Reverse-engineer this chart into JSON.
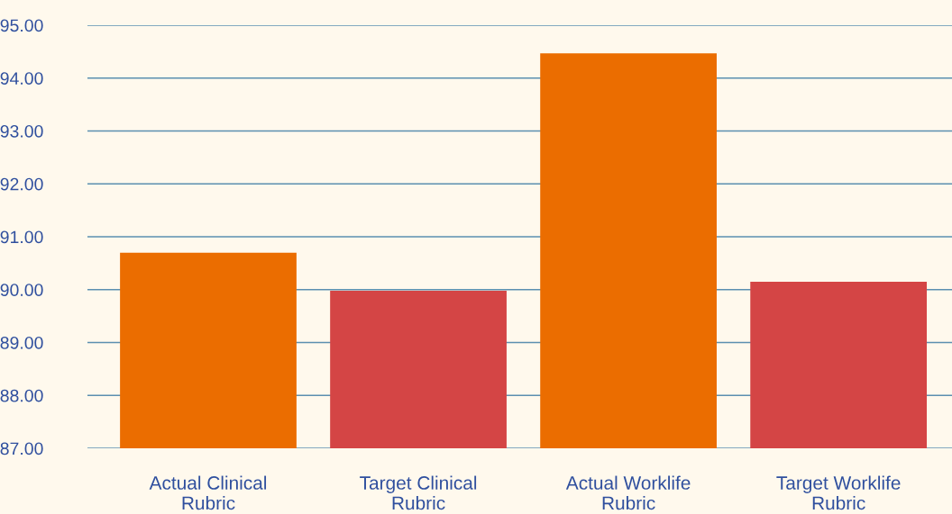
{
  "chart_data": {
    "type": "bar",
    "categories": [
      "Actual Clinical\nRubric",
      "Target Clinical\nRubric",
      "Actual Worklife\nRubric",
      "Target Worklife\nRubric"
    ],
    "values": [
      90.7,
      89.98,
      94.47,
      90.15
    ],
    "colors": [
      "#eb6d00",
      "#d44545",
      "#eb6d00",
      "#d44545"
    ],
    "ylim": [
      87,
      95
    ],
    "yticks": [
      {
        "value": 87,
        "label": "87.00"
      },
      {
        "value": 88,
        "label": "88.00"
      },
      {
        "value": 89,
        "label": "89.00"
      },
      {
        "value": 90,
        "label": "90.00"
      },
      {
        "value": 91,
        "label": "91.00"
      },
      {
        "value": 92,
        "label": "92.00"
      },
      {
        "value": 93,
        "label": "93.00"
      },
      {
        "value": 94,
        "label": "94.00"
      },
      {
        "value": 95,
        "label": "95.00"
      }
    ],
    "grid": "y",
    "legend": false
  }
}
